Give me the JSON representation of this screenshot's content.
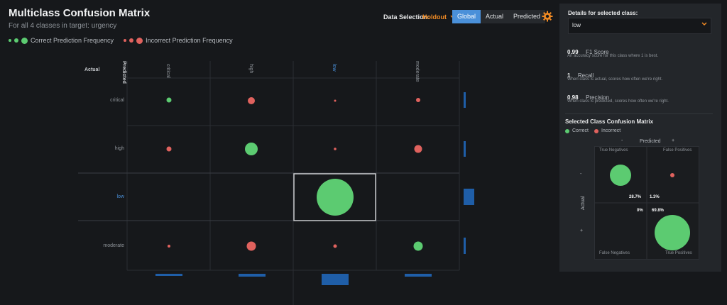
{
  "header": {
    "title": "Multiclass Confusion Matrix",
    "subtitle": "For all 4 classes in target: urgency",
    "legend_correct": "Correct Prediction Frequency",
    "legend_incorrect": "Incorrect Prediction Frequency"
  },
  "data_selection": {
    "label": "Data Selection:",
    "value": "Holdout",
    "modes": [
      "Global",
      "Actual",
      "Predicted"
    ],
    "active_mode": "Global"
  },
  "matrix": {
    "corner_actual": "Actual",
    "corner_predicted": "Predicted",
    "classes": [
      "critical",
      "high",
      "low",
      "moderate"
    ],
    "selected_class": "low",
    "correct_color": "#5ccb71",
    "incorrect_color": "#e0625e",
    "bar_color": "#1f5ea8"
  },
  "panel": {
    "title": "Details for selected class:",
    "selected_class": "low",
    "f1_value": "0.99",
    "f1_name": "F1 Score",
    "f1_desc": "An accuracy score for this class where 1 is best.",
    "recall_value": "1",
    "recall_name": "Recall",
    "recall_desc": "When class is actual, scores how often we're right.",
    "precision_value": "0.98",
    "precision_name": "Precision",
    "precision_desc": "When class is predicted, scores how often we're right.",
    "sub_title": "Selected Class Confusion Matrix",
    "legend_correct": "Correct",
    "legend_incorrect": "Incorrect",
    "mini": {
      "predicted_label": "Predicted",
      "actual_label": "Actual",
      "minus": "-",
      "plus": "+",
      "tn_label": "True Negatives",
      "fp_label": "False Positives",
      "fn_label": "False Negatives",
      "tp_label": "True Positives",
      "tn_pct": "28.7%",
      "fp_pct": "1.3%",
      "fn_pct": "0%",
      "tp_pct": "69.8%"
    }
  }
}
